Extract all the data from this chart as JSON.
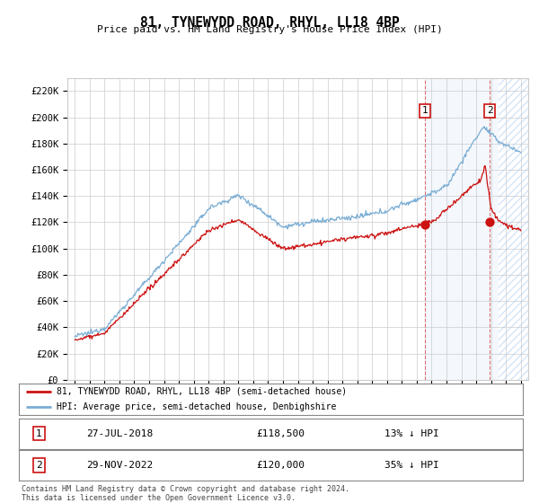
{
  "title": "81, TYNEWYDD ROAD, RHYL, LL18 4BP",
  "subtitle": "Price paid vs. HM Land Registry's House Price Index (HPI)",
  "ylim": [
    0,
    230000
  ],
  "yticks": [
    0,
    20000,
    40000,
    60000,
    80000,
    100000,
    120000,
    140000,
    160000,
    180000,
    200000,
    220000
  ],
  "ytick_labels": [
    "£0",
    "£20K",
    "£40K",
    "£60K",
    "£80K",
    "£100K",
    "£120K",
    "£140K",
    "£160K",
    "£180K",
    "£200K",
    "£220K"
  ],
  "hpi_color": "#7aadd4",
  "price_color": "#cc1111",
  "transaction1_date_x": 2018.57,
  "transaction1_price": 118500,
  "transaction1_label": "27-JUL-2018",
  "transaction1_amount": "£118,500",
  "transaction1_pct": "13% ↓ HPI",
  "transaction2_date_x": 2022.91,
  "transaction2_price": 120000,
  "transaction2_label": "29-NOV-2022",
  "transaction2_amount": "£120,000",
  "transaction2_pct": "35% ↓ HPI",
  "legend_line1": "81, TYNEWYDD ROAD, RHYL, LL18 4BP (semi-detached house)",
  "legend_line2": "HPI: Average price, semi-detached house, Denbighshire",
  "footer": "Contains HM Land Registry data © Crown copyright and database right 2024.\nThis data is licensed under the Open Government Licence v3.0.",
  "background_color": "#ffffff",
  "grid_color": "#cccccc",
  "shade_start": 2018.57,
  "shade_end": 2022.91,
  "hatch_start": 2023.5,
  "hatch_end": 2025.5,
  "xlim_left": 1994.5,
  "xlim_right": 2025.5
}
